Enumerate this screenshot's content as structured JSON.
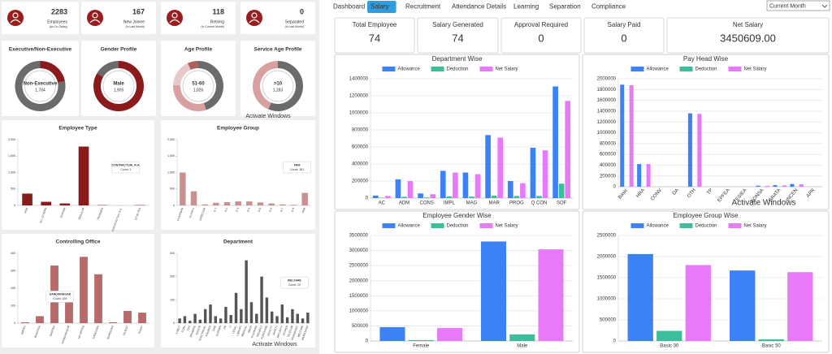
{
  "left": {
    "kpis": [
      {
        "value": 2283,
        "label": "Employees",
        "note": "(As On Today)"
      },
      {
        "value": 167,
        "label": "New Joinee",
        "note": "(In Last Month)"
      },
      {
        "value": 118,
        "label": "Retiring",
        "note": "(In Current Month)"
      },
      {
        "value": 0,
        "label": "Separated",
        "note": "(In Last Month)"
      }
    ],
    "donuts": [
      {
        "title": "Executive/Non-Executive",
        "center_label": "Non-Executive",
        "center_value": "1,784",
        "values": [
          499,
          1784
        ],
        "colors": [
          "#8b1a1a",
          "#6b6b6b"
        ]
      },
      {
        "title": "Gender Profile",
        "center_label": "Male",
        "center_value": "1,905",
        "values": [
          1905,
          378
        ],
        "colors": [
          "#8b1a1a",
          "#6b6b6b"
        ]
      },
      {
        "title": "Age Profile",
        "center_label": "51-60",
        "center_value": "1,026",
        "values": [
          1026,
          700,
          400,
          157
        ],
        "colors": [
          "#6b6b6b",
          "#d9a0a0",
          "#e8c8c8",
          "#b06060"
        ]
      },
      {
        "title": "Service Age Profile",
        "center_label": ">10",
        "center_value": "1,283",
        "values": [
          1283,
          1000
        ],
        "colors": [
          "#6b6b6b",
          "#d9a0a0"
        ]
      }
    ],
    "charts": [
      {
        "type": "bar",
        "title": "Employee Type",
        "categories": [
          "FRM",
          "ALL OTHERS",
          "SYSTEM",
          "REGULAR",
          "TRAINEES",
          "CONTRACTUAL R.A.",
          "STUD.TEA"
        ],
        "values": [
          360,
          110,
          60,
          1790,
          10,
          1,
          10
        ],
        "color": "#8b1a1a",
        "ylim": [
          0,
          2000
        ],
        "yticks": [
          0,
          500,
          {
            "value": 1000,
            "label": "1,000"
          },
          {
            "value": 1500,
            "label": "1,500"
          },
          {
            "value": 2000,
            "label": "2,000"
          }
        ],
        "tooltip": {
          "title": "CONTRACTUAL R.A.",
          "text": "Count: 1"
        }
      },
      {
        "type": "bar",
        "title": "Employee Group",
        "categories": [
          "CHAIRMAN",
          "CLASS II",
          "DIRECTOR",
          "E-1",
          "E-2",
          "E-3",
          "E-4",
          "E-5",
          "E-6",
          "E-7",
          "E-8",
          "FRM"
        ],
        "values": [
          1000,
          430,
          30,
          80,
          100,
          120,
          120,
          90,
          60,
          30,
          20,
          381
        ],
        "color": "#c99090",
        "ylim": [
          0,
          2000
        ],
        "yticks": [
          0,
          500,
          {
            "value": 1000,
            "label": "1,000"
          },
          {
            "value": 1500,
            "label": "1,500"
          },
          {
            "value": 2000,
            "label": "2,000"
          }
        ],
        "tooltip": {
          "title": "FRM",
          "text": "Count: 381"
        }
      },
      {
        "type": "bar",
        "title": "Controlling Office",
        "categories": [
          "AMRELI",
          "BHARUCH",
          "BARODA",
          "GANDHINAGAR",
          "HO OFFICE",
          "JUNAGADH",
          "MAHESANA",
          "RAJKOT",
          "SURAT"
        ],
        "values": [
          5,
          40,
          330,
          159,
          380,
          280,
          5,
          70,
          60
        ],
        "color": "#b86a6a",
        "ylim": [
          0,
          400
        ],
        "yticks": [
          0,
          100,
          200,
          300,
          400
        ],
        "tooltip": {
          "title": "GANDHINAGAR",
          "text": "Count: 159"
        }
      },
      {
        "type": "bar",
        "title": "Department",
        "categories": [
          "A.MELT",
          "COAL",
          "CPC",
          "DRAWING",
          "ESTATE",
          "ELECTRICAL",
          "FINANCE",
          "FIRE",
          "GARDEN",
          "HR",
          "IT",
          "LEGAL",
          "LIBRARY",
          "MEDICAL",
          "MECH",
          "PLANNING",
          "PROJECT",
          "PURCHASE",
          "QUALITY",
          "SAFETY",
          "SECURITY",
          "STORES",
          "TELECOM",
          "TRANSPORT",
          "WELFARE",
          "WORKSHOP"
        ],
        "values": [
          20,
          30,
          10,
          40,
          15,
          60,
          80,
          30,
          20,
          70,
          35,
          130,
          60,
          270,
          90,
          40,
          200,
          110,
          50,
          30,
          80,
          25,
          60,
          40,
          20,
          45
        ],
        "color": "#555555",
        "ylim": [
          0,
          300
        ],
        "yticks": [
          0,
          100,
          200,
          300
        ],
        "tooltip": {
          "title": "WELFARE",
          "text": "Count: 20"
        }
      }
    ]
  },
  "right": {
    "nav": [
      {
        "label": "Dashboard"
      },
      {
        "label": "Salary",
        "active": true
      },
      {
        "label": "Recruitment"
      },
      {
        "label": "Attendance Details"
      },
      {
        "label": "Learning"
      },
      {
        "label": "Separation"
      },
      {
        "label": "Compliance"
      }
    ],
    "period": "Current Month",
    "kpis": [
      {
        "label": "Total Employee",
        "value": 74
      },
      {
        "label": "Salary Generated",
        "value": 74
      },
      {
        "label": "Approval Required",
        "value": 0
      },
      {
        "label": "Salary Paid",
        "value": 0
      },
      {
        "label": "Net Salary",
        "value": "3450609.00"
      }
    ],
    "charts": [
      {
        "type": "bar",
        "title": "Department Wise",
        "categories": [
          "AC",
          "ADM",
          "CONS",
          "IMPL",
          "MAG",
          "MAR",
          "PROG",
          "Q CON",
          "SOF"
        ],
        "series": [
          {
            "name": "Allowance",
            "color": "#3b82f6",
            "values": [
              30000,
              220000,
              55000,
              320000,
              300000,
              740000,
              200000,
              590000,
              1310000
            ]
          },
          {
            "name": "Deduction",
            "color": "#3dbd9b",
            "values": [
              5000,
              15000,
              8000,
              20000,
              18000,
              30000,
              25000,
              25000,
              170000
            ]
          },
          {
            "name": "Net Salary",
            "color": "#e879f9",
            "values": [
              25000,
              200000,
              45000,
              300000,
              280000,
              710000,
              175000,
              560000,
              1140000
            ]
          }
        ],
        "ylim": [
          0,
          1400000
        ],
        "yticks": [
          0,
          200000,
          400000,
          600000,
          800000,
          1000000,
          1200000,
          1400000
        ],
        "grid": true,
        "legend": "top"
      },
      {
        "type": "bar",
        "title": "Pay Head Wise",
        "categories": [
          "Basic",
          "HRA",
          "CONV",
          "DA",
          "OTH",
          "TP",
          "EPFEA",
          "ESIEA",
          "BONSA",
          "GRATA",
          "INCEN",
          "APR"
        ],
        "series": [
          {
            "name": "Allowance",
            "color": "#3b82f6",
            "values": [
              1890000,
              420000,
              0,
              0,
              1360000,
              0,
              0,
              0,
              20000,
              30000,
              50000,
              0
            ]
          },
          {
            "name": "Deduction",
            "color": "#3dbd9b",
            "values": [
              0,
              0,
              0,
              0,
              0,
              0,
              0,
              0,
              0,
              0,
              0,
              0
            ]
          },
          {
            "name": "Net Salary",
            "color": "#e879f9",
            "values": [
              1880000,
              420000,
              0,
              0,
              1350000,
              0,
              0,
              0,
              15000,
              25000,
              45000,
              0
            ]
          }
        ],
        "ylim": [
          0,
          2000000
        ],
        "yticks": [
          0,
          200000,
          400000,
          600000,
          800000,
          1000000,
          1200000,
          1400000,
          1600000,
          1800000,
          2000000
        ],
        "grid": true,
        "legend": "top"
      },
      {
        "type": "bar",
        "title": "Employee Gender Wise",
        "categories": [
          "Female",
          "Male"
        ],
        "series": [
          {
            "name": "Allowance",
            "color": "#3b82f6",
            "values": [
              460000,
              3300000
            ]
          },
          {
            "name": "Deduction",
            "color": "#3dbd9b",
            "values": [
              30000,
              220000
            ]
          },
          {
            "name": "Net Salary",
            "color": "#e879f9",
            "values": [
              430000,
              3040000
            ]
          }
        ],
        "ylim": [
          0,
          3500000
        ],
        "yticks": [
          0,
          500000,
          1000000,
          1500000,
          2000000,
          2500000,
          3000000,
          3500000
        ],
        "grid": true,
        "legend": "top"
      },
      {
        "type": "bar",
        "title": "Employee Group Wise",
        "categories": [
          "Basic 30",
          "Basic 50"
        ],
        "series": [
          {
            "name": "Allowance",
            "color": "#3b82f6",
            "values": [
              2060000,
              1670000
            ]
          },
          {
            "name": "Deduction",
            "color": "#3dbd9b",
            "values": [
              240000,
              40000
            ]
          },
          {
            "name": "Net Salary",
            "color": "#e879f9",
            "values": [
              1800000,
              1630000
            ]
          }
        ],
        "ylim": [
          0,
          2500000
        ],
        "yticks": [
          0,
          500000,
          1000000,
          1500000,
          2000000,
          2500000
        ],
        "grid": true,
        "legend": "top"
      }
    ]
  },
  "watermark": "Activate Windows"
}
